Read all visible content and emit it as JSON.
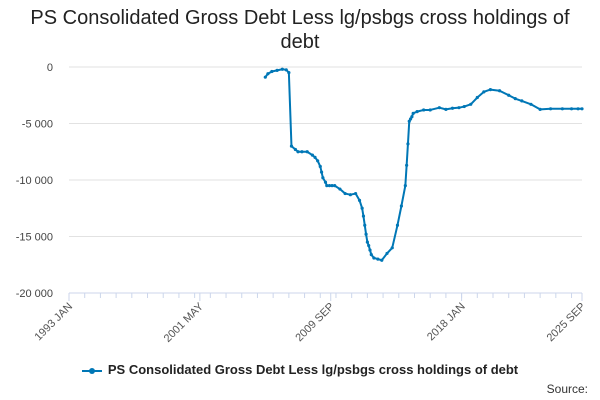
{
  "title": "PS Consolidated Gross Debt Less lg/psbgs cross holdings of debt",
  "source_label": "Source:",
  "legend": {
    "label": "PS Consolidated Gross Debt Less lg/psbgs cross holdings of debt"
  },
  "colors": {
    "series": "#0077b6",
    "grid": "#e2e2e2",
    "axis": "#ccd6eb"
  },
  "chart_data": {
    "type": "line",
    "title": "PS Consolidated Gross Debt Less lg/psbgs cross holdings of debt",
    "xlabel": "",
    "ylabel": "",
    "grid": true,
    "legend_position": "bottom",
    "ylim": [
      -20000,
      0
    ],
    "yticks": [
      0,
      -5000,
      -10000,
      -15000,
      -20000
    ],
    "ytick_labels": [
      "0",
      "-5 000",
      "-10 000",
      "-15 000",
      "-20 000"
    ],
    "xlim": [
      "1993-01",
      "2025-09"
    ],
    "xticks": [
      "1993-01",
      "2001-05",
      "2009-09",
      "2018-01",
      "2025-09"
    ],
    "xtick_labels": [
      "1993 JAN",
      "2001 MAY",
      "2009 SEP",
      "2018 JAN",
      "2025 SEP"
    ],
    "series": [
      {
        "name": "PS Consolidated Gross Debt Less lg/psbgs cross holdings of debt",
        "x": [
          "2005-07",
          "2005-09",
          "2005-12",
          "2006-04",
          "2006-08",
          "2006-11",
          "2007-01",
          "2007-03",
          "2007-06",
          "2007-08",
          "2007-11",
          "2008-03",
          "2008-07",
          "2008-09",
          "2008-11",
          "2009-01",
          "2009-02",
          "2009-03",
          "2009-05",
          "2009-06",
          "2009-08",
          "2009-10",
          "2009-12",
          "2010-04",
          "2010-08",
          "2010-12",
          "2011-04",
          "2011-07",
          "2011-09",
          "2011-10",
          "2011-11",
          "2011-12",
          "2012-01",
          "2012-02",
          "2012-03",
          "2012-04",
          "2012-06",
          "2012-09",
          "2012-12",
          "2013-04",
          "2013-08",
          "2013-12",
          "2014-03",
          "2014-06",
          "2014-07",
          "2014-08",
          "2014-09",
          "2014-10",
          "2014-11",
          "2014-12",
          "2015-03",
          "2015-08",
          "2016-01",
          "2016-08",
          "2017-01",
          "2017-06",
          "2017-11",
          "2018-03",
          "2018-08",
          "2019-01",
          "2019-06",
          "2019-11",
          "2020-06",
          "2021-01",
          "2021-06",
          "2021-11",
          "2022-06",
          "2023-01",
          "2023-09",
          "2024-06",
          "2025-01",
          "2025-06",
          "2025-09"
        ],
        "values": [
          -900,
          -600,
          -400,
          -300,
          -200,
          -250,
          -500,
          -7000,
          -7300,
          -7500,
          -7500,
          -7500,
          -7800,
          -8000,
          -8300,
          -8800,
          -9300,
          -9800,
          -10200,
          -10500,
          -10500,
          -10500,
          -10500,
          -10800,
          -11200,
          -11300,
          -11200,
          -11800,
          -12500,
          -13200,
          -14000,
          -14800,
          -15500,
          -15800,
          -16200,
          -16600,
          -16900,
          -17000,
          -17100,
          -16500,
          -16000,
          -14000,
          -12300,
          -10500,
          -8700,
          -6800,
          -4800,
          -4600,
          -4400,
          -4100,
          -3950,
          -3800,
          -3800,
          -3600,
          -3750,
          -3650,
          -3600,
          -3500,
          -3300,
          -2700,
          -2200,
          -2000,
          -2100,
          -2500,
          -2800,
          -3000,
          -3300,
          -3750,
          -3700,
          -3700,
          -3700,
          -3700,
          -3700
        ]
      }
    ]
  }
}
